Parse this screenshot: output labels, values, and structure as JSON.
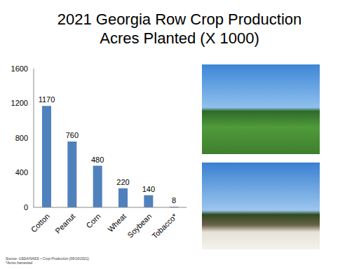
{
  "chart_data": {
    "type": "bar",
    "title": "2021 Georgia Row Crop Production",
    "subtitle": "Acres Planted (X 1000)",
    "categories": [
      "Cotton",
      "Peanut",
      "Corn",
      "Wheat",
      "Soybean",
      "Tobacco*"
    ],
    "values": [
      1170,
      760,
      480,
      220,
      140,
      8
    ],
    "color": "#4f81bd",
    "ylim": [
      0,
      1600
    ],
    "yticks": [
      0,
      400,
      800,
      1200,
      1600
    ],
    "grid": false,
    "data_labels": true,
    "annotations": [
      "Source: USDA/NASS – Crop Production (09/10/2021)",
      "*Acres harvested"
    ]
  }
}
